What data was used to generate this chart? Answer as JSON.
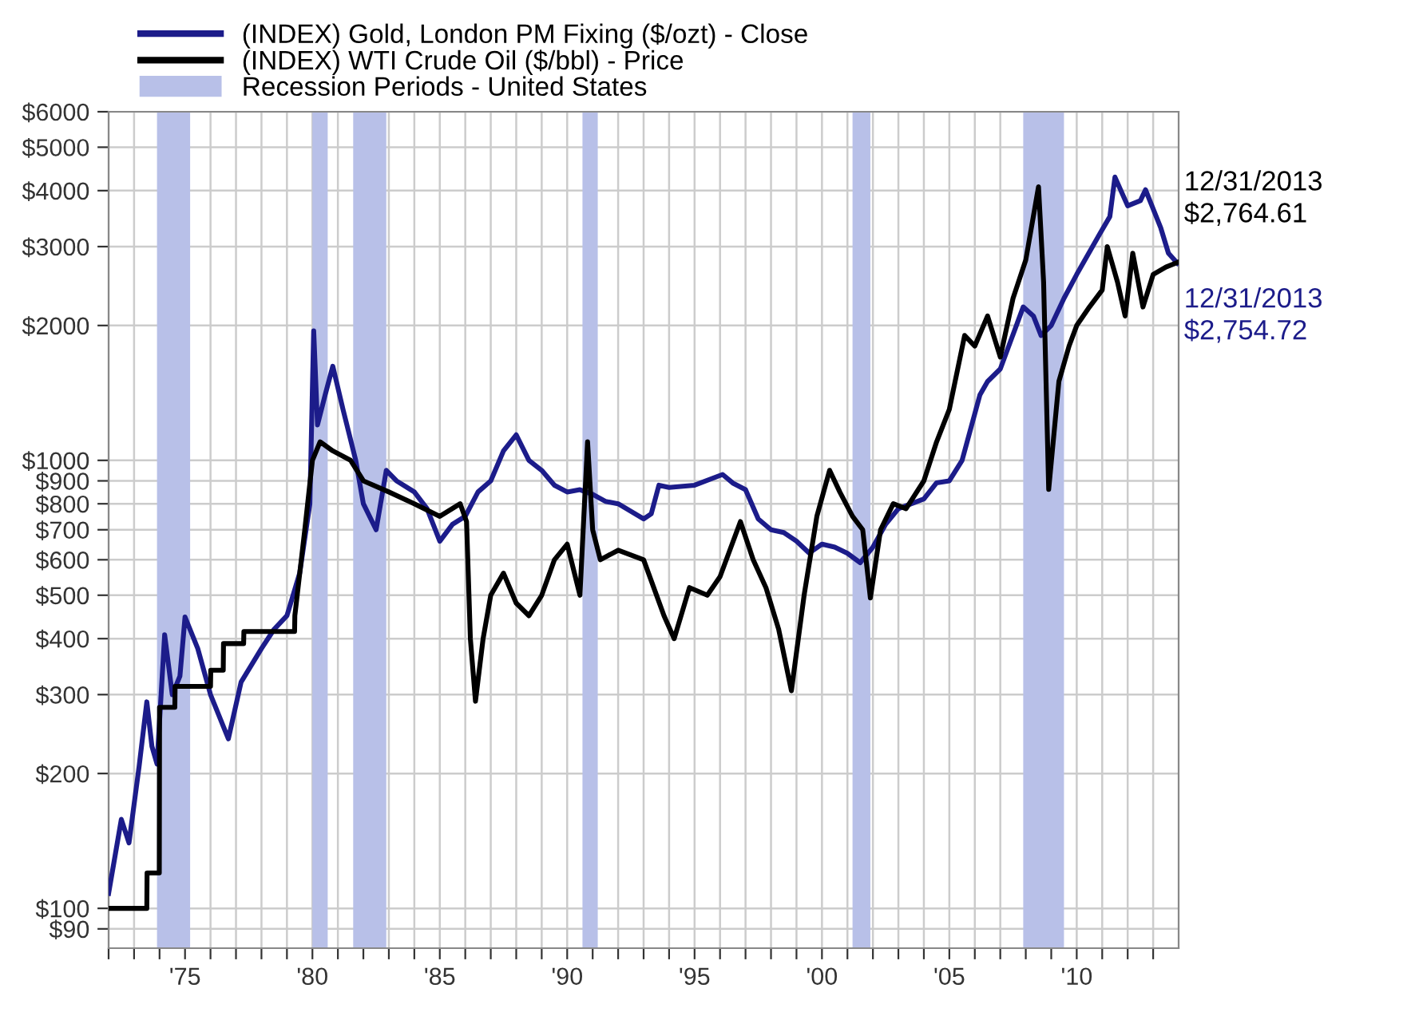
{
  "chart_data": {
    "type": "line",
    "log": "y",
    "grid": true,
    "legend": "top left",
    "line_style": "solid",
    "marker": "none",
    "xlim": [
      1972,
      2014
    ],
    "ylim": [
      81.5,
      6000
    ],
    "xticks": [
      {
        "value": 1972,
        "label": null
      },
      {
        "value": 1973,
        "label": null
      },
      {
        "value": 1974,
        "label": null
      },
      {
        "value": 1975,
        "label": "'75"
      },
      {
        "value": 1976,
        "label": null
      },
      {
        "value": 1977,
        "label": null
      },
      {
        "value": 1978,
        "label": null
      },
      {
        "value": 1979,
        "label": null
      },
      {
        "value": 1980,
        "label": "'80"
      },
      {
        "value": 1981,
        "label": null
      },
      {
        "value": 1982,
        "label": null
      },
      {
        "value": 1983,
        "label": null
      },
      {
        "value": 1984,
        "label": null
      },
      {
        "value": 1985,
        "label": "'85"
      },
      {
        "value": 1986,
        "label": null
      },
      {
        "value": 1987,
        "label": null
      },
      {
        "value": 1988,
        "label": null
      },
      {
        "value": 1989,
        "label": null
      },
      {
        "value": 1990,
        "label": "'90"
      },
      {
        "value": 1991,
        "label": null
      },
      {
        "value": 1992,
        "label": null
      },
      {
        "value": 1993,
        "label": null
      },
      {
        "value": 1994,
        "label": null
      },
      {
        "value": 1995,
        "label": "'95"
      },
      {
        "value": 1996,
        "label": null
      },
      {
        "value": 1997,
        "label": null
      },
      {
        "value": 1998,
        "label": null
      },
      {
        "value": 1999,
        "label": null
      },
      {
        "value": 2000,
        "label": "'00"
      },
      {
        "value": 2001,
        "label": null
      },
      {
        "value": 2002,
        "label": null
      },
      {
        "value": 2003,
        "label": null
      },
      {
        "value": 2004,
        "label": null
      },
      {
        "value": 2005,
        "label": "'05"
      },
      {
        "value": 2006,
        "label": null
      },
      {
        "value": 2007,
        "label": null
      },
      {
        "value": 2008,
        "label": null
      },
      {
        "value": 2009,
        "label": null
      },
      {
        "value": 2010,
        "label": "'10"
      },
      {
        "value": 2011,
        "label": null
      },
      {
        "value": 2012,
        "label": null
      },
      {
        "value": 2013,
        "label": null
      }
    ],
    "yticks": [
      {
        "value": 90,
        "label": "$90"
      },
      {
        "value": 100,
        "label": "$100"
      },
      {
        "value": 200,
        "label": "$200"
      },
      {
        "value": 300,
        "label": "$300"
      },
      {
        "value": 400,
        "label": "$400"
      },
      {
        "value": 500,
        "label": "$500"
      },
      {
        "value": 600,
        "label": "$600"
      },
      {
        "value": 700,
        "label": "$700"
      },
      {
        "value": 800,
        "label": "$800"
      },
      {
        "value": 900,
        "label": "$900"
      },
      {
        "value": 1000,
        "label": "$1000"
      },
      {
        "value": 2000,
        "label": "$2000"
      },
      {
        "value": 3000,
        "label": "$3000"
      },
      {
        "value": 4000,
        "label": "$4000"
      },
      {
        "value": 5000,
        "label": "$5000"
      },
      {
        "value": 6000,
        "label": "$6000"
      }
    ],
    "series": [
      {
        "name": "(INDEX) Gold, London PM Fixing ($/ozt) - Close",
        "color": "#1c1c8a",
        "x": [
          1972.0,
          1972.5,
          1972.8,
          1973.2,
          1973.5,
          1973.7,
          1973.9,
          1974.2,
          1974.5,
          1974.8,
          1975.0,
          1975.5,
          1976.0,
          1976.7,
          1977.2,
          1978.0,
          1978.5,
          1979.0,
          1979.5,
          1979.9,
          1980.05,
          1980.2,
          1980.5,
          1980.8,
          1981.2,
          1981.7,
          1982.0,
          1982.5,
          1982.9,
          1983.3,
          1984.0,
          1984.5,
          1985.0,
          1985.5,
          1986.0,
          1986.5,
          1987.0,
          1987.5,
          1988.0,
          1988.5,
          1989.0,
          1989.5,
          1990.0,
          1990.5,
          1991.0,
          1991.5,
          1992.0,
          1992.5,
          1993.0,
          1993.3,
          1993.6,
          1994.0,
          1995.0,
          1996.1,
          1996.5,
          1997.0,
          1997.5,
          1998.0,
          1998.5,
          1999.0,
          1999.5,
          2000.0,
          2000.5,
          2001.0,
          2001.5,
          2002.0,
          2002.5,
          2003.0,
          2004.0,
          2004.5,
          2005.0,
          2005.5,
          2006.2,
          2006.5,
          2007.0,
          2007.9,
          2008.3,
          2008.6,
          2009.0,
          2009.5,
          2010.0,
          2010.9,
          2011.3,
          2011.5,
          2012.0,
          2012.5,
          2012.7,
          2013.3,
          2013.6,
          2013.95
        ],
        "values": [
          108,
          158,
          140,
          208,
          289,
          230,
          210,
          408,
          300,
          330,
          447,
          380,
          300,
          239,
          320,
          380,
          420,
          450,
          560,
          800,
          1946,
          1200,
          1400,
          1622,
          1300,
          1000,
          800,
          700,
          950,
          900,
          850,
          780,
          660,
          720,
          750,
          850,
          900,
          1050,
          1140,
          1000,
          950,
          880,
          850,
          860,
          840,
          810,
          800,
          770,
          740,
          760,
          880,
          870,
          880,
          930,
          890,
          860,
          740,
          700,
          690,
          660,
          621,
          650,
          640,
          620,
          591,
          640,
          720,
          780,
          820,
          891,
          900,
          1000,
          1400,
          1500,
          1600,
          2200,
          2100,
          1900,
          2000,
          2300,
          2600,
          3200,
          3500,
          4288,
          3700,
          3800,
          4018,
          3300,
          2900,
          2754.72
        ]
      },
      {
        "name": "(INDEX) WTI Crude Oil ($/bbl) - Price",
        "color": "#000000",
        "x": [
          1972.0,
          1973.5,
          1973.51,
          1973.99,
          1974.0,
          1974.6,
          1974.61,
          1976.0,
          1976.01,
          1976.5,
          1976.51,
          1977.3,
          1977.31,
          1979.3,
          1979.31,
          1979.7,
          1980.0,
          1980.3,
          1980.8,
          1981.5,
          1982.0,
          1983.0,
          1984.0,
          1985.0,
          1985.8,
          1986.05,
          1986.2,
          1986.4,
          1986.7,
          1987.0,
          1987.5,
          1988.0,
          1988.5,
          1989.0,
          1989.5,
          1990.0,
          1990.5,
          1990.8,
          1991.0,
          1991.3,
          1992.0,
          1993.0,
          1993.8,
          1994.2,
          1994.8,
          1995.5,
          1996.0,
          1996.8,
          1997.3,
          1997.8,
          1998.3,
          1998.8,
          1999.3,
          1999.8,
          2000.3,
          2000.7,
          2001.2,
          2001.6,
          2001.9,
          2002.3,
          2002.8,
          2003.3,
          2004.0,
          2004.5,
          2005.0,
          2005.6,
          2006.0,
          2006.5,
          2007.0,
          2007.5,
          2008.0,
          2008.5,
          2008.7,
          2008.9,
          2009.3,
          2009.7,
          2010.0,
          2010.5,
          2011.0,
          2011.2,
          2011.6,
          2011.9,
          2012.2,
          2012.6,
          2013.0,
          2013.5,
          2013.95
        ],
        "values": [
          100,
          100,
          120,
          120,
          281,
          281,
          313,
          313,
          340,
          340,
          390,
          390,
          415,
          415,
          450,
          700,
          1000,
          1100,
          1050,
          1000,
          900,
          850,
          800,
          750,
          800,
          730,
          400,
          290,
          400,
          500,
          560,
          480,
          450,
          500,
          600,
          650,
          500,
          1100,
          700,
          600,
          630,
          600,
          450,
          400,
          520,
          500,
          550,
          730,
          600,
          520,
          420,
          306,
          500,
          750,
          950,
          850,
          750,
          700,
          493,
          700,
          800,
          780,
          900,
          1100,
          1300,
          1900,
          1800,
          2100,
          1700,
          2300,
          2800,
          4080,
          2500,
          861,
          1500,
          1800,
          2000,
          2200,
          2400,
          3000,
          2500,
          2100,
          2900,
          2200,
          2600,
          2700,
          2764.61
        ]
      }
    ],
    "bands": [
      {
        "axis": "x",
        "from": 1973.9,
        "to": 1975.2,
        "label": "Recession Periods - United States",
        "color": "#b8c0e8"
      },
      {
        "axis": "x",
        "from": 1980.0,
        "to": 1980.6,
        "color": "#b8c0e8"
      },
      {
        "axis": "x",
        "from": 1981.6,
        "to": 1982.9,
        "color": "#b8c0e8"
      },
      {
        "axis": "x",
        "from": 1990.6,
        "to": 1991.2,
        "color": "#b8c0e8"
      },
      {
        "axis": "x",
        "from": 2001.2,
        "to": 2001.9,
        "color": "#b8c0e8"
      },
      {
        "axis": "x",
        "from": 2007.9,
        "to": 2009.5,
        "color": "#b8c0e8"
      }
    ],
    "annotations": [
      {
        "text": "12/31/2013\n$2,764.61",
        "x": 2013.95,
        "y": 2764.61
      },
      {
        "text": "12/31/2013\n$2,754.72",
        "x": 2013.95,
        "y": 2754.72
      }
    ]
  }
}
